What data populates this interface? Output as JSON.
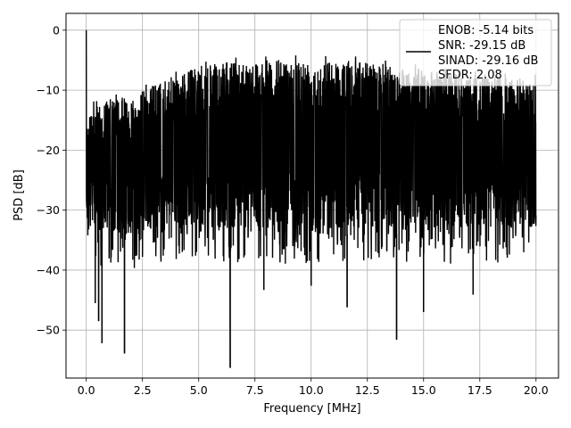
{
  "chart_data": {
    "type": "line",
    "title": "",
    "xlabel": "Frequency [MHz]",
    "ylabel": "PSD [dB]",
    "xlim": [
      -0.9,
      21.0
    ],
    "ylim": [
      -58.0,
      2.8
    ],
    "xticks": [
      0.0,
      2.5,
      5.0,
      7.5,
      10.0,
      12.5,
      15.0,
      17.5,
      20.0
    ],
    "xtick_labels": [
      "0.0",
      "2.5",
      "5.0",
      "7.5",
      "10.0",
      "12.5",
      "15.0",
      "17.5",
      "20.0"
    ],
    "yticks": [
      0,
      -10,
      -20,
      -30,
      -40,
      -50
    ],
    "ytick_labels": [
      "0",
      "−10",
      "−20",
      "−30",
      "−40",
      "−50"
    ],
    "grid": true,
    "legend_position": "top-right",
    "line_color": "#000000",
    "series": [
      {
        "name": "",
        "description_values": {
          "x_range": [
            0.0,
            20.0
          ],
          "dc_peak": 0.0,
          "typical_range": [
            -33,
            -5
          ],
          "max_level": -3.7,
          "min_level": -56.3
        }
      }
    ],
    "envelope": {
      "x": [
        0.0,
        1.0,
        2.0,
        3.0,
        4.0,
        5.0,
        6.0,
        7.0,
        8.0,
        9.0,
        10.0,
        11.0,
        12.0,
        13.0,
        14.0,
        15.0,
        16.0,
        17.0,
        18.0,
        19.0,
        20.0
      ],
      "upper": [
        -12,
        -11.5,
        -11,
        -9,
        -7.5,
        -6,
        -5.5,
        -5,
        -5,
        -4.8,
        -4.8,
        -5,
        -5,
        -5.5,
        -6,
        -6.5,
        -7,
        -7.5,
        -7.5,
        -8,
        -8
      ],
      "lower": [
        -33,
        -34,
        -34,
        -33,
        -32.5,
        -32.5,
        -33,
        -33,
        -33,
        -33,
        -33,
        -33,
        -33,
        -33,
        -33,
        -33,
        -33,
        -33,
        -33,
        -33,
        -33
      ]
    },
    "notable_dips": [
      {
        "x": 0.4,
        "y": -45.5
      },
      {
        "x": 0.55,
        "y": -48.5
      },
      {
        "x": 0.7,
        "y": -52.2
      },
      {
        "x": 1.7,
        "y": -53.9
      },
      {
        "x": 6.4,
        "y": -56.3
      },
      {
        "x": 7.9,
        "y": -43.3
      },
      {
        "x": 10.0,
        "y": -42.6
      },
      {
        "x": 11.6,
        "y": -46.2
      },
      {
        "x": 13.8,
        "y": -51.6
      },
      {
        "x": 15.0,
        "y": -47.0
      },
      {
        "x": 17.2,
        "y": -44.1
      }
    ],
    "legend": {
      "entries": [
        "ENOB: -5.14 bits",
        "SNR: -29.15 dB",
        "SINAD: -29.16 dB",
        "SFDR: 2.08"
      ]
    }
  }
}
